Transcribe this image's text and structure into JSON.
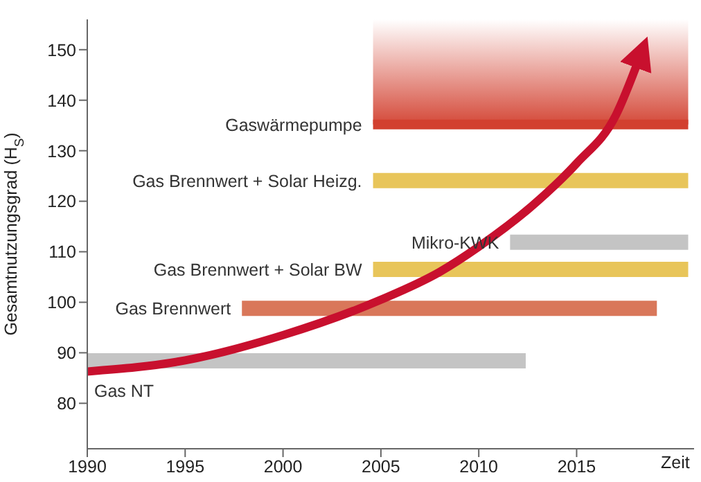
{
  "chart_data": {
    "type": "line",
    "xlabel": "Zeit",
    "ylabel": "Gesamtnutzungsgrad (H$_{S}$)",
    "xlim": [
      1990,
      2021
    ],
    "xticks": [
      1990,
      1995,
      2000,
      2005,
      2010,
      2015
    ],
    "ylim": [
      71,
      156
    ],
    "yticks": [
      80,
      90,
      100,
      110,
      120,
      130,
      140,
      150
    ],
    "grid": false,
    "legend": false,
    "series": [
      {
        "name": "Gas NT",
        "color": "#c4c4c4",
        "x": [
          1990,
          2012.4
        ],
        "values": [
          88.4,
          88.4
        ]
      },
      {
        "name": "Gas Brennwert",
        "color": "#d9775a",
        "x": [
          1997.9,
          2019.1
        ],
        "values": [
          98.8,
          98.8
        ]
      },
      {
        "name": "Gas Brennwert + Solar BW",
        "color": "#e8c55a",
        "x": [
          2004.6,
          2020.7
        ],
        "values": [
          106.5,
          106.5
        ]
      },
      {
        "name": "Mikro-KWK",
        "color": "#c4c4c4",
        "x": [
          2011.6,
          2020.7
        ],
        "values": [
          111.9,
          111.9
        ]
      },
      {
        "name": "Gas Brennwert + Solar Heizg.",
        "color": "#e8c55a",
        "x": [
          2004.6,
          2020.7
        ],
        "values": [
          124.1,
          124.1
        ]
      },
      {
        "name": "Gaswärmepumpe",
        "color": "#d2402f",
        "x": [
          2004.6,
          2020.7
        ],
        "values": [
          135.2,
          135.2
        ]
      },
      {
        "color": "#c8102e",
        "x": [
          1990,
          1995,
          2000,
          2005,
          2008,
          2010,
          2013,
          2015,
          2017,
          2018.2
        ],
        "values": [
          86.3,
          88.5,
          93.5,
          100.5,
          106,
          111,
          120,
          127.5,
          137,
          148.3
        ]
      }
    ]
  }
}
